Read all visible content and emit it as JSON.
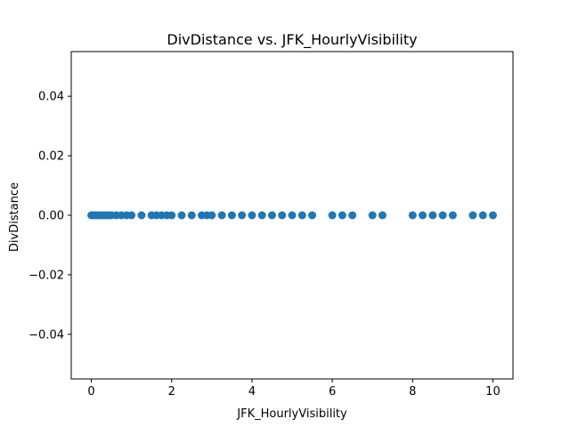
{
  "chart_data": {
    "type": "scatter",
    "title": "DivDistance vs. JFK_HourlyVisibility",
    "xlabel": "JFK_HourlyVisibility",
    "ylabel": "DivDistance",
    "xlim": [
      -0.5,
      10.5
    ],
    "ylim": [
      -0.055,
      0.055
    ],
    "xticks": [
      0,
      2,
      4,
      6,
      8,
      10
    ],
    "yticks": [
      -0.04,
      -0.02,
      0.0,
      0.02,
      0.04
    ],
    "ytick_labels": [
      "−0.04",
      "−0.02",
      "0.00",
      "0.02",
      "0.04"
    ],
    "grid": false,
    "color": "#1f77b4",
    "series": [
      {
        "x": [
          0.0,
          0.06,
          0.12,
          0.19,
          0.25,
          0.31,
          0.38,
          0.44,
          0.5,
          0.62,
          0.75,
          0.88,
          1.0,
          1.25,
          1.5,
          1.62,
          1.75,
          1.88,
          2.0,
          2.25,
          2.5,
          2.75,
          2.88,
          3.0,
          3.25,
          3.5,
          3.75,
          4.0,
          4.25,
          4.5,
          4.75,
          5.0,
          5.25,
          5.5,
          6.0,
          6.25,
          6.5,
          7.0,
          7.25,
          8.0,
          8.25,
          8.5,
          8.75,
          9.0,
          9.5,
          9.75,
          10.0
        ],
        "y": [
          0,
          0,
          0,
          0,
          0,
          0,
          0,
          0,
          0,
          0,
          0,
          0,
          0,
          0,
          0,
          0,
          0,
          0,
          0,
          0,
          0,
          0,
          0,
          0,
          0,
          0,
          0,
          0,
          0,
          0,
          0,
          0,
          0,
          0,
          0,
          0,
          0,
          0,
          0,
          0,
          0,
          0,
          0,
          0,
          0,
          0,
          0
        ]
      }
    ]
  }
}
